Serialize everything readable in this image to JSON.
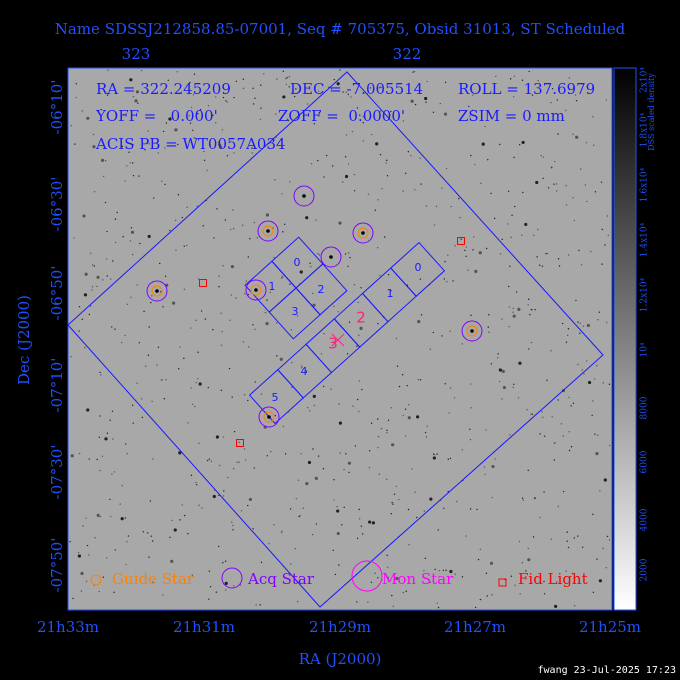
{
  "header": {
    "title": "Name SDSSJ212858.85-07001, Seq # 705375, Obsid 31013, ST Scheduled"
  },
  "info": {
    "ra": "RA = 322.245209",
    "dec": "DEC = -7.005514",
    "roll": "ROLL = 137.6979",
    "yoff": "YOFF =   0.000'",
    "zoff": "ZOFF =  0.0000'",
    "zsim": "ZSIM = 0 mm",
    "acis": "ACIS PB = WT0057A034"
  },
  "axes": {
    "top_ticks": [
      "323",
      "322"
    ],
    "left_ticks": [
      "-06°10'",
      "-06°30'",
      "-06°50'",
      "-07°10'",
      "-07°30'",
      "-07°50'"
    ],
    "bottom_ticks": [
      "21h33m",
      "21h31m",
      "21h29m",
      "21h27m",
      "21h25m"
    ],
    "x_label": "RA (J2000)",
    "y_label": "Dec (J2000)"
  },
  "colorbar": {
    "label": "DSS scaled density",
    "ticks": [
      "2x10⁴",
      "1.8x10⁴",
      "1.6x10⁴",
      "1.4x10⁴",
      "1.2x10⁴",
      "10⁴",
      "8000",
      "6000",
      "4000",
      "2000"
    ]
  },
  "chips": {
    "i_array": [
      "0",
      "1",
      "2",
      "3"
    ],
    "s_array": [
      "0",
      "1",
      "2",
      "3",
      "4",
      "5"
    ]
  },
  "legend": [
    "Guide Star",
    "Acq Star",
    "Mon Star",
    "Fid Light"
  ],
  "footer": "fwang 23-Jul-2025 17:23"
}
